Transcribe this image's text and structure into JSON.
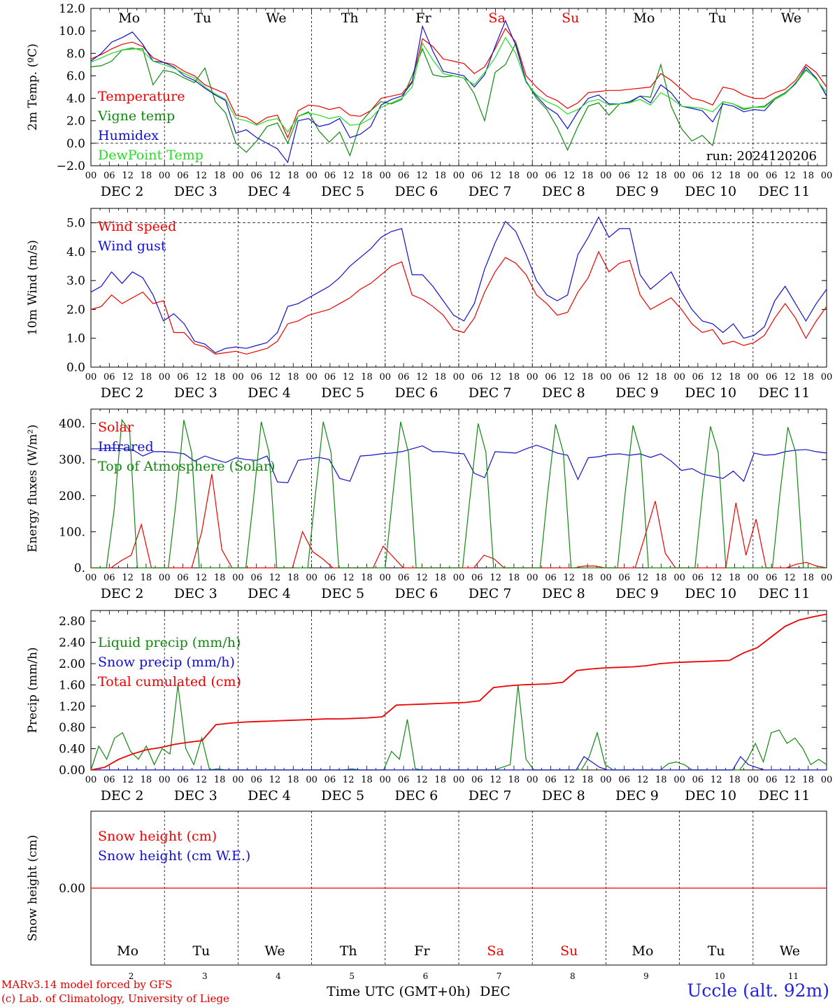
{
  "footer": {
    "credit_line1": "MARv3.14 model forced by GFS",
    "credit_line2": "(c) Lab. of Climatology, University of Liege",
    "station": "Uccle (alt. 92m)",
    "xlabel": "Time UTC (GMT+0h)",
    "xlabel_month": "DEC"
  },
  "colors": {
    "red": "#ee0000",
    "green": "#118811",
    "blue": "#1111cc",
    "lightgreen": "#22dd22"
  },
  "time_axis": {
    "hour_ticks": [
      "00",
      "06",
      "12",
      "18"
    ],
    "end_tick": "00",
    "day_labels": [
      "DEC  2",
      "DEC  3",
      "DEC  4",
      "DEC  5",
      "DEC  6",
      "DEC  7",
      "DEC  8",
      "DEC  9",
      "DEC 10",
      "DEC 11"
    ],
    "weekdays": [
      "Mo",
      "Tu",
      "We",
      "Th",
      "Fr",
      "Sa",
      "Su",
      "Mo",
      "Tu",
      "We"
    ],
    "weekend_days": [
      5,
      6
    ],
    "day_numbers": [
      "2",
      "3",
      "4",
      "5",
      "6",
      "7",
      "8",
      "9",
      "10",
      "11"
    ],
    "hours_per_point": 3
  },
  "chart_data": [
    {
      "type": "line",
      "ylabel": "2m Temp. (ºC)",
      "ylim": [
        -2,
        12
      ],
      "yticks": [
        "−2.0",
        "0.0",
        "2.0",
        "4.0",
        "6.0",
        "8.0",
        "10.0",
        "12.0"
      ],
      "reference_lines": [
        0
      ],
      "annotation": "run: 2024120206",
      "series": [
        {
          "name": "Temperature",
          "color": "red",
          "values": [
            7.5,
            7.9,
            8.4,
            8.8,
            9.0,
            8.6,
            7.6,
            7.2,
            7.0,
            6.4,
            6.0,
            5.2,
            4.8,
            4.4,
            2.5,
            2.3,
            1.7,
            2.3,
            2.5,
            0.5,
            2.9,
            3.4,
            3.3,
            3.0,
            3.2,
            2.5,
            2.4,
            2.9,
            4.0,
            4.2,
            4.4,
            5.5,
            9.3,
            8.6,
            7.5,
            7.3,
            7.1,
            6.2,
            6.8,
            8.4,
            10.2,
            9.0,
            6.0,
            5.0,
            4.2,
            3.8,
            3.1,
            3.6,
            4.5,
            4.6,
            4.7,
            4.7,
            4.8,
            4.9,
            5.0,
            6.2,
            5.6,
            4.8,
            4.0,
            3.8,
            3.4,
            5.0,
            4.8,
            4.3,
            4.0,
            4.0,
            4.5,
            4.8,
            5.6,
            7.0,
            6.3,
            5.0
          ]
        },
        {
          "name": "Vigne temp",
          "color": "green",
          "values": [
            6.8,
            6.9,
            7.3,
            8.3,
            8.4,
            8.4,
            5.2,
            6.5,
            6.3,
            5.8,
            5.4,
            6.7,
            3.7,
            2.7,
            0.0,
            -0.8,
            0.2,
            1.5,
            1.8,
            0.0,
            2.4,
            2.8,
            1.1,
            0.1,
            1.0,
            -1.1,
            1.8,
            2.9,
            3.7,
            3.5,
            3.9,
            6.0,
            8.4,
            6.1,
            5.9,
            6.0,
            5.8,
            4.4,
            2.0,
            6.3,
            7.0,
            8.9,
            5.5,
            4.0,
            3.0,
            1.4,
            -0.6,
            1.5,
            3.3,
            3.6,
            2.5,
            3.5,
            3.6,
            4.2,
            4.1,
            7.0,
            3.3,
            1.3,
            0.2,
            0.7,
            -0.2,
            3.7,
            3.5,
            3.0,
            3.2,
            3.3,
            4.0,
            4.5,
            5.3,
            6.5,
            5.8,
            4.2
          ]
        },
        {
          "name": "Humidex",
          "color": "blue",
          "values": [
            7.3,
            8.0,
            9.0,
            9.4,
            9.9,
            8.8,
            7.3,
            7.2,
            6.8,
            6.0,
            5.6,
            4.9,
            4.3,
            3.8,
            0.9,
            1.2,
            0.5,
            0.0,
            -0.5,
            -1.7,
            2.0,
            2.2,
            1.5,
            1.7,
            2.2,
            0.5,
            0.8,
            1.5,
            3.4,
            3.9,
            4.2,
            5.4,
            10.4,
            8.2,
            6.4,
            6.2,
            6.0,
            5.0,
            6.1,
            8.6,
            10.9,
            8.7,
            5.5,
            4.2,
            3.2,
            2.6,
            1.3,
            2.8,
            4.0,
            4.3,
            3.5,
            3.5,
            3.7,
            4.2,
            3.6,
            5.2,
            4.5,
            3.3,
            3.1,
            2.9,
            1.9,
            3.5,
            3.3,
            2.8,
            3.0,
            2.9,
            3.9,
            4.4,
            5.3,
            6.8,
            5.8,
            4.2
          ]
        },
        {
          "name": "DewPoint Temp",
          "color": "lightgreen",
          "values": [
            7.2,
            7.6,
            8.0,
            8.3,
            8.5,
            8.2,
            7.3,
            7.0,
            6.7,
            6.2,
            5.8,
            5.0,
            4.4,
            3.9,
            2.2,
            2.0,
            1.6,
            2.0,
            2.2,
            1.0,
            2.4,
            2.7,
            2.5,
            2.2,
            2.4,
            1.6,
            1.7,
            2.2,
            3.2,
            3.6,
            4.0,
            5.0,
            8.9,
            7.4,
            6.2,
            6.0,
            5.8,
            5.2,
            6.3,
            7.6,
            9.4,
            8.0,
            5.4,
            4.3,
            3.7,
            3.3,
            2.6,
            3.0,
            3.7,
            3.9,
            3.4,
            3.5,
            3.6,
            3.9,
            3.4,
            4.5,
            4.0,
            3.3,
            3.2,
            3.1,
            2.8,
            3.7,
            3.5,
            3.1,
            3.2,
            3.2,
            3.9,
            4.4,
            5.4,
            6.6,
            5.7,
            4.5
          ]
        }
      ]
    },
    {
      "type": "line",
      "ylabel": "10m Wind (m/s)",
      "ylim": [
        0,
        5.5
      ],
      "yticks": [
        "0.0",
        "1.0",
        "2.0",
        "3.0",
        "4.0",
        "5.0"
      ],
      "reference_lines": [
        5
      ],
      "series": [
        {
          "name": "Wind speed",
          "color": "red",
          "values": [
            2.0,
            2.1,
            2.5,
            2.2,
            2.4,
            2.6,
            2.2,
            2.3,
            1.2,
            1.2,
            0.8,
            0.7,
            0.45,
            0.5,
            0.55,
            0.45,
            0.55,
            0.65,
            0.9,
            1.5,
            1.6,
            1.8,
            1.9,
            2.0,
            2.2,
            2.4,
            2.7,
            2.9,
            3.2,
            3.5,
            3.65,
            2.5,
            2.35,
            2.1,
            1.8,
            1.3,
            1.2,
            1.7,
            2.6,
            3.3,
            3.8,
            3.6,
            3.2,
            2.5,
            2.2,
            1.8,
            1.9,
            2.6,
            3.1,
            4.0,
            3.3,
            3.6,
            3.7,
            2.5,
            2.0,
            2.2,
            2.4,
            2.0,
            1.5,
            1.2,
            1.3,
            0.8,
            0.9,
            0.75,
            0.85,
            1.1,
            1.7,
            2.2,
            1.7,
            1.0,
            1.6,
            2.1
          ]
        },
        {
          "name": "Wind gust",
          "color": "blue",
          "values": [
            2.6,
            2.8,
            3.3,
            2.9,
            3.3,
            3.1,
            2.5,
            1.6,
            1.85,
            1.5,
            0.9,
            0.8,
            0.5,
            0.65,
            0.7,
            0.65,
            0.75,
            0.85,
            1.2,
            2.1,
            2.2,
            2.4,
            2.6,
            2.8,
            3.1,
            3.5,
            3.8,
            4.1,
            4.5,
            4.7,
            4.8,
            3.2,
            3.2,
            2.8,
            2.3,
            1.8,
            1.6,
            2.2,
            3.4,
            4.3,
            5.05,
            4.7,
            3.9,
            3.0,
            2.5,
            2.3,
            2.5,
            3.9,
            4.5,
            5.2,
            4.5,
            4.8,
            4.8,
            3.2,
            2.7,
            3.0,
            3.3,
            2.6,
            2.0,
            1.6,
            1.5,
            1.2,
            1.5,
            1.0,
            1.1,
            1.4,
            2.3,
            2.8,
            2.2,
            1.6,
            2.2,
            2.7
          ]
        }
      ]
    },
    {
      "type": "line",
      "ylabel": "Energy fluxes (W/m²)",
      "ylim": [
        0,
        440
      ],
      "yticks": [
        "0.",
        "100.",
        "200.",
        "300.",
        "400."
      ],
      "reference_lines": [],
      "series": [
        {
          "name": "Solar",
          "color": "red",
          "values": [
            0,
            0,
            0,
            20,
            35,
            120,
            0,
            0,
            0,
            0,
            0,
            100,
            260,
            50,
            0,
            0,
            0,
            0,
            0,
            0,
            0,
            100,
            45,
            25,
            0,
            0,
            0,
            0,
            0,
            60,
            30,
            0,
            0,
            0,
            0,
            0,
            0,
            0,
            0,
            35,
            25,
            0,
            0,
            0,
            0,
            0,
            0,
            0,
            0,
            5,
            5,
            0,
            0,
            0,
            0,
            90,
            185,
            40,
            0,
            0,
            0,
            0,
            0,
            0,
            180,
            35,
            135,
            0,
            0,
            0,
            10,
            15,
            5,
            0
          ]
        },
        {
          "name": "Infrared",
          "color": "blue",
          "values": [
            330,
            330,
            332,
            330,
            328,
            310,
            322,
            322,
            320,
            316,
            296,
            310,
            300,
            292,
            305,
            300,
            298,
            310,
            238,
            236,
            298,
            302,
            306,
            300,
            248,
            240,
            310,
            312,
            316,
            318,
            322,
            330,
            338,
            322,
            322,
            318,
            316,
            262,
            250,
            322,
            320,
            318,
            330,
            340,
            330,
            318,
            312,
            245,
            305,
            308,
            314,
            316,
            312,
            316,
            306,
            316,
            296,
            270,
            275,
            260,
            254,
            248,
            268,
            240,
            318,
            312,
            314,
            322,
            326,
            328,
            322,
            318
          ]
        },
        {
          "name": "Top of Atmosphere (Solar)",
          "color": "green",
          "values": [
            0,
            0,
            0,
            160,
            410,
            380,
            0,
            0,
            0,
            0,
            0,
            185,
            410,
            320,
            0,
            0,
            0,
            0,
            0,
            0,
            0,
            190,
            405,
            320,
            0,
            0,
            0,
            0,
            0,
            205,
            405,
            320,
            0,
            0,
            0,
            0,
            0,
            0,
            0,
            205,
            405,
            320,
            0,
            0,
            0,
            0,
            0,
            0,
            0,
            205,
            400,
            320,
            0,
            0,
            0,
            0,
            0,
            0,
            0,
            210,
            398,
            320,
            0,
            0,
            0,
            0,
            0,
            0,
            0,
            210,
            395,
            320,
            0,
            0,
            0,
            0,
            0,
            0,
            0,
            210,
            392,
            320,
            0,
            0,
            0,
            0,
            0,
            0,
            0,
            210,
            390,
            320,
            0,
            0,
            0,
            0
          ]
        }
      ]
    },
    {
      "type": "line",
      "ylabel": "Precip (mm/h)",
      "ylim": [
        0,
        3.0
      ],
      "yticks": [
        "0.00",
        "0.40",
        "0.80",
        "1.20",
        "1.60",
        "2.00",
        "2.40",
        "2.80"
      ],
      "reference_lines": [],
      "series": [
        {
          "name": "Liquid precip (mm/h)",
          "color": "green",
          "values": [
            0,
            0.45,
            0.2,
            0.6,
            0.7,
            0.35,
            0.2,
            0.45,
            0.1,
            0.4,
            0.3,
            1.6,
            0.4,
            0.1,
            0.6,
            0,
            0.02,
            0,
            0,
            0,
            0,
            0,
            0,
            0,
            0,
            0,
            0,
            0,
            0,
            0,
            0,
            0,
            0,
            0.02,
            0,
            0,
            0,
            0,
            0.35,
            0.2,
            0.95,
            0.02,
            0,
            0,
            0,
            0,
            0,
            0,
            0,
            0,
            0,
            0,
            0.05,
            0.1,
            1.6,
            0.2,
            0,
            0,
            0,
            0,
            0,
            0,
            0,
            0.25,
            0.7,
            0.1,
            0,
            0,
            0,
            0,
            0,
            0,
            0,
            0.12,
            0.15,
            0.1,
            0,
            0,
            0,
            0,
            0,
            0,
            0,
            0.2,
            0.5,
            0.15,
            0.7,
            0.75,
            0.5,
            0.6,
            0.4,
            0.1,
            0.2,
            0.1
          ]
        },
        {
          "name": "Snow precip (mm/h)",
          "color": "blue",
          "values": [
            0,
            0,
            0,
            0,
            0,
            0,
            0,
            0,
            0,
            0,
            0,
            0,
            0,
            0,
            0,
            0,
            0,
            0,
            0,
            0,
            0,
            0,
            0,
            0,
            0,
            0,
            0,
            0,
            0,
            0,
            0,
            0,
            0,
            0,
            0,
            0,
            0,
            0,
            0,
            0,
            0,
            0,
            0,
            0,
            0,
            0,
            0,
            0,
            0,
            0,
            0,
            0,
            0,
            0,
            0,
            0,
            0,
            0,
            0,
            0,
            0,
            0,
            0,
            0.25,
            0.15,
            0.05,
            0,
            0,
            0,
            0,
            0,
            0,
            0,
            0,
            0,
            0,
            0,
            0,
            0,
            0,
            0,
            0,
            0,
            0.25,
            0.1,
            0.05,
            0,
            0,
            0,
            0,
            0,
            0,
            0,
            0,
            0
          ]
        },
        {
          "name": "Total cumulated (cm)",
          "color": "red",
          "values": [
            0,
            0.05,
            0.2,
            0.3,
            0.38,
            0.42,
            0.48,
            0.52,
            0.55,
            0.85,
            0.88,
            0.9,
            0.91,
            0.92,
            0.93,
            0.94,
            0.95,
            0.96,
            0.96,
            0.97,
            0.98,
            1.0,
            1.22,
            1.23,
            1.24,
            1.25,
            1.26,
            1.27,
            1.3,
            1.55,
            1.58,
            1.6,
            1.61,
            1.62,
            1.65,
            1.87,
            1.9,
            1.92,
            1.93,
            1.94,
            1.96,
            2.0,
            2.02,
            2.03,
            2.04,
            2.05,
            2.06,
            2.2,
            2.3,
            2.5,
            2.7,
            2.82,
            2.88,
            2.93
          ]
        }
      ]
    },
    {
      "type": "line",
      "ylabel": "Snow height (cm)",
      "ylim": [
        -1,
        1
      ],
      "yticks": [
        "0.00"
      ],
      "reference_lines": [],
      "series": [
        {
          "name": "Snow height (cm)",
          "color": "red",
          "values": [
            0,
            0
          ]
        },
        {
          "name": "Snow height (cm W.E.)",
          "color": "blue",
          "values": []
        }
      ]
    }
  ]
}
